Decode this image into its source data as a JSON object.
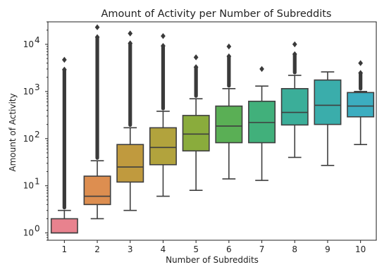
{
  "chart_data": {
    "type": "box",
    "title": "Amount of Activity per Number of Subreddits",
    "xlabel": "Number of Subreddits",
    "ylabel": "Amount of Activity",
    "yscale": "log",
    "ylim": [
      0.7,
      30000
    ],
    "y_ticks": [
      {
        "value": 1,
        "label": "10^0"
      },
      {
        "value": 10,
        "label": "10^1"
      },
      {
        "value": 100,
        "label": "10^2"
      },
      {
        "value": 1000,
        "label": "10^3"
      },
      {
        "value": 10000,
        "label": "10^4"
      }
    ],
    "grid": false,
    "legend": "none",
    "categories": [
      "1",
      "2",
      "3",
      "4",
      "5",
      "6",
      "7",
      "8",
      "9",
      "10"
    ],
    "boxes": [
      {
        "category": "1",
        "whisker_low": 1,
        "q1": 1,
        "median": 1,
        "q3": 2,
        "whisker_high": 3,
        "outlier_max": 4700,
        "color": "#e8828e"
      },
      {
        "category": "2",
        "whisker_low": 2,
        "q1": 4,
        "median": 6,
        "q3": 16,
        "whisker_high": 34,
        "outlier_max": 23000,
        "color": "#dd8e50"
      },
      {
        "category": "3",
        "whisker_low": 3,
        "q1": 12,
        "median": 25,
        "q3": 75,
        "whisker_high": 170,
        "outlier_max": 17000,
        "color": "#c09a3e"
      },
      {
        "category": "4",
        "whisker_low": 6,
        "q1": 28,
        "median": 65,
        "q3": 170,
        "whisker_high": 380,
        "outlier_max": 15000,
        "color": "#b2a33d"
      },
      {
        "category": "5",
        "whisker_low": 8,
        "q1": 55,
        "median": 125,
        "q3": 310,
        "whisker_high": 700,
        "outlier_max": 5300,
        "color": "#8aac3c"
      },
      {
        "category": "6",
        "whisker_low": 14,
        "q1": 82,
        "median": 185,
        "q3": 490,
        "whisker_high": 1150,
        "outlier_max": 9000,
        "color": "#5aaf55"
      },
      {
        "category": "7",
        "whisker_low": 13,
        "q1": 82,
        "median": 220,
        "q3": 620,
        "whisker_high": 1300,
        "outlier_max": 3000,
        "color": "#41b07b"
      },
      {
        "category": "8",
        "whisker_low": 40,
        "q1": 195,
        "median": 360,
        "q3": 1150,
        "whisker_high": 2200,
        "outlier_max": 10000,
        "color": "#3bae99"
      },
      {
        "category": "9",
        "whisker_low": 27,
        "q1": 200,
        "median": 510,
        "q3": 1750,
        "whisker_high": 2600,
        "outlier_max": null,
        "color": "#3aadab"
      },
      {
        "category": "10",
        "whisker_low": 75,
        "q1": 290,
        "median": 490,
        "q3": 950,
        "whisker_high": 1000,
        "outlier_max": 4000,
        "color": "#3cadc0"
      }
    ]
  }
}
